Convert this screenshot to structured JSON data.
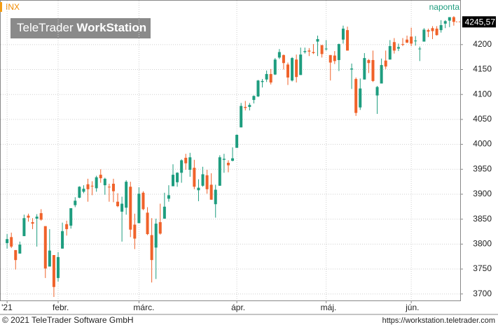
{
  "chart_data": {
    "type": "candlestick",
    "symbol": "INX",
    "frequency": "naponta",
    "logo": {
      "brand": "TeleTrader",
      "product": "WorkStation"
    },
    "last_label": "4245,57",
    "up_color": "#1e9d7f",
    "down_color": "#f0622a",
    "grid": true,
    "ylim": [
      3687,
      4288
    ],
    "yticks": [
      3700,
      3750,
      3800,
      3850,
      3900,
      3950,
      4000,
      4050,
      4100,
      4150,
      4200
    ],
    "xlim": [
      -1.5,
      106.5
    ],
    "xticks": [
      {
        "value": 0,
        "label": "'21"
      },
      {
        "value": 12,
        "label": "febr."
      },
      {
        "value": 31,
        "label": "márc."
      },
      {
        "value": 54,
        "label": "ápr."
      },
      {
        "value": 75,
        "label": "máj."
      },
      {
        "value": 95,
        "label": "jún."
      }
    ],
    "open": [
      3802,
      3814,
      3788,
      3781,
      3816,
      3857,
      3844,
      3851,
      3862,
      3836,
      3755,
      3778,
      3732,
      3791,
      3840,
      3837,
      3878,
      3893,
      3905,
      3920,
      3917,
      3912,
      3939,
      3918,
      3915,
      3921,
      3885,
      3865,
      3873,
      3915,
      3839,
      3842,
      3903,
      3863,
      3818,
      3793,
      3844,
      3851,
      3891,
      3916,
      3924,
      3943,
      3973,
      3949,
      3953,
      3908,
      3917,
      3938,
      3919,
      3880,
      3917,
      3969,
      3963,
      3967,
      3993,
      4034,
      4075,
      4075,
      4089,
      4096,
      4125,
      4130,
      4141,
      4140,
      4174,
      4179,
      4160,
      4128,
      4170,
      4139,
      4185,
      4188,
      4185,
      4206,
      4199,
      4191,
      4179,
      4178,
      4169,
      4210,
      4229,
      4150,
      4131,
      4074,
      4130,
      4169,
      4169,
      4098,
      4122,
      4168,
      4170,
      4205,
      4192,
      4201,
      4210,
      4216,
      4207,
      4191,
      4206,
      4229,
      4233,
      4232,
      4229,
      4242,
      4248,
      4255
    ],
    "high": [
      3820,
      3823,
      3788,
      3805,
      3859,
      3861,
      3852,
      3860,
      3870,
      3836,
      3830,
      3778,
      3784,
      3843,
      3847,
      3872,
      3894,
      3916,
      3918,
      3931,
      3926,
      3937,
      3950,
      3933,
      3921,
      3931,
      3902,
      3895,
      3928,
      3925,
      3861,
      3914,
      3906,
      3874,
      3852,
      3851,
      3881,
      3903,
      3918,
      3960,
      3944,
      3970,
      3981,
      3983,
      3969,
      3930,
      3955,
      3949,
      3942,
      3919,
      3978,
      3981,
      3968,
      3994,
      4020,
      4083,
      4087,
      4083,
      4098,
      4129,
      4131,
      4148,
      4151,
      4173,
      4191,
      4180,
      4164,
      4175,
      4180,
      4194,
      4194,
      4193,
      4201,
      4218,
      4199,
      4209,
      4179,
      4187,
      4202,
      4238,
      4236,
      4162,
      4134,
      4132,
      4183,
      4171,
      4188,
      4117,
      4172,
      4188,
      4209,
      4213,
      4202,
      4213,
      4218,
      4234,
      4217,
      4196,
      4233,
      4232,
      4237,
      4237,
      4249,
      4249,
      4255,
      4257
    ],
    "low": [
      3791,
      3792,
      3749,
      3781,
      3816,
      3845,
      3830,
      3795,
      3847,
      3732,
      3755,
      3694,
      3725,
      3791,
      3817,
      3831,
      3874,
      3892,
      3902,
      3885,
      3898,
      3905,
      3923,
      3899,
      3885,
      3884,
      3874,
      3805,
      3859,
      3814,
      3790,
      3842,
      3868,
      3818,
      3723,
      3730,
      3819,
      3851,
      3885,
      3916,
      3915,
      3923,
      3949,
      3935,
      3910,
      3886,
      3915,
      3901,
      3889,
      3853,
      3917,
      3943,
      3944,
      3966,
      3993,
      4034,
      4068,
      4068,
      4082,
      4095,
      4114,
      4125,
      4120,
      4139,
      4171,
      4150,
      4119,
      4126,
      4124,
      4139,
      4182,
      4177,
      4181,
      4177,
      4174,
      4188,
      4128,
      4161,
      4147,
      4202,
      4188,
      4111,
      4057,
      4069,
      4130,
      4143,
      4125,
      4061,
      4122,
      4151,
      4170,
      4182,
      4187,
      4197,
      4203,
      4197,
      4198,
      4167,
      4206,
      4215,
      4211,
      4218,
      4224,
      4233,
      4235,
      4238
    ],
    "close": [
      3810,
      3795,
      3768,
      3799,
      3852,
      3853,
      3841,
      3855,
      3849,
      3751,
      3787,
      3714,
      3774,
      3826,
      3830,
      3872,
      3887,
      3915,
      3911,
      3910,
      3916,
      3934,
      3932,
      3931,
      3914,
      3906,
      3876,
      3881,
      3925,
      3829,
      3811,
      3901,
      3870,
      3820,
      3768,
      3841,
      3821,
      3875,
      3898,
      3939,
      3943,
      3968,
      3962,
      3974,
      3915,
      3913,
      3940,
      3910,
      3889,
      3909,
      3974,
      3971,
      3958,
      3972,
      4019,
      4077,
      4073,
      4079,
      4097,
      4128,
      4127,
      4141,
      4124,
      4170,
      4185,
      4163,
      4134,
      4173,
      4135,
      4180,
      4187,
      4186,
      4183,
      4211,
      4181,
      4192,
      4164,
      4167,
      4201,
      4232,
      4188,
      4152,
      4063,
      4112,
      4173,
      4163,
      4127,
      4115,
      4159,
      4156,
      4197,
      4188,
      4195,
      4200,
      4204,
      4202,
      4208,
      4192,
      4230,
      4226,
      4227,
      4219,
      4239,
      4247,
      4255,
      4245.57
    ]
  },
  "footer": {
    "copyright": "© 2021 TeleTrader Software GmbH",
    "url": "https://workstation.teletrader.com"
  }
}
